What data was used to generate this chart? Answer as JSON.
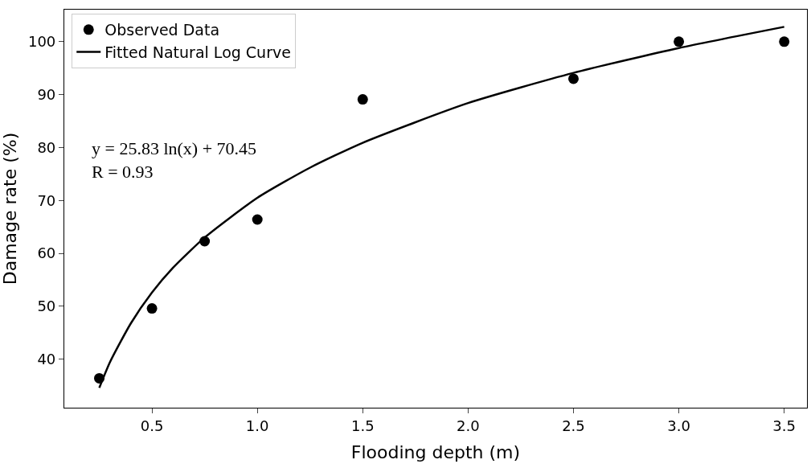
{
  "chart_data": {
    "type": "scatter",
    "xlabel": "Flooding depth (m)",
    "ylabel": "Damage rate (%)",
    "xlim": [
      0.084,
      3.608
    ],
    "ylim": [
      30.85,
      106.05
    ],
    "xticks": [
      0.5,
      {
        "value": 1,
        "label": "1.0"
      },
      1.5,
      {
        "value": 2,
        "label": "2.0"
      },
      2.5,
      {
        "value": 3,
        "label": "3.0"
      },
      3.5
    ],
    "yticks": [
      40,
      50,
      60,
      70,
      80,
      90,
      100
    ],
    "legend": "top left",
    "series": [
      {
        "name": "Observed Data",
        "marker": "circle",
        "color": "#000000",
        "x": [
          0.25,
          0.5,
          0.75,
          1.0,
          1.5,
          2.5,
          3.0,
          3.5
        ],
        "values": [
          36.4,
          49.6,
          62.3,
          66.4,
          89.1,
          93.0,
          100,
          100
        ]
      },
      {
        "name": "Fitted Natural Log Curve",
        "type": "line",
        "marker": "none",
        "line_style": "solid",
        "color": "#000000",
        "x": [
          0.25,
          0.3,
          0.4,
          0.5,
          0.6,
          0.75,
          1.0,
          1.25,
          1.5,
          2.0,
          2.5,
          3.0,
          3.5
        ],
        "values": [
          34.6,
          39.4,
          46.8,
          52.6,
          57.3,
          63.0,
          70.5,
          76.2,
          80.9,
          88.4,
          94.1,
          98.8,
          102.8
        ]
      }
    ],
    "annotations": [
      "y = 25.83 ln(x) + 70.45\nR = 0.93"
    ]
  }
}
